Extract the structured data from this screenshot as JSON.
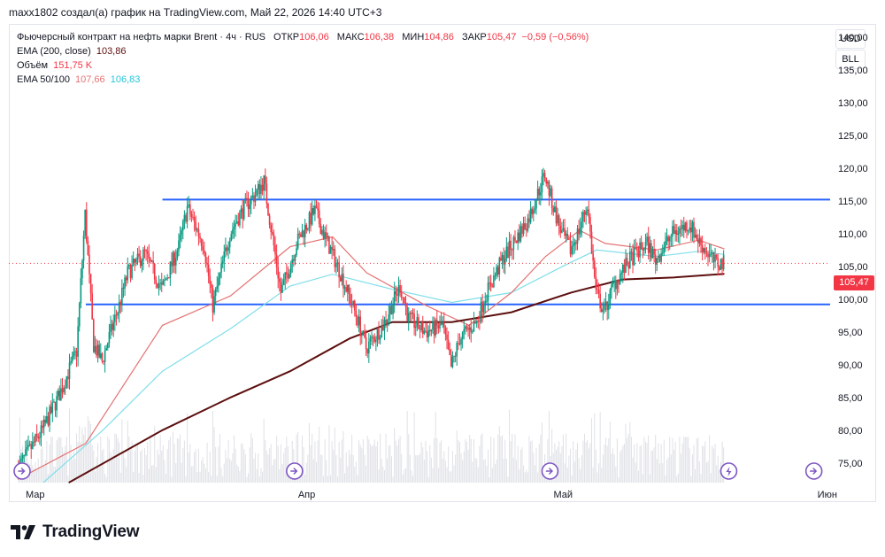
{
  "caption": "maxx1802 создал(а) график на TradingView.com, Май 22, 2026 14:40 UTC+3",
  "legend": {
    "instrument": "Фьючерсный контракт на нефть марки Brent · 4ч · RUS",
    "open_label": "ОТКР",
    "open": "106,06",
    "high_label": "МАКС",
    "high": "106,38",
    "low_label": "МИН",
    "low": "104,86",
    "close_label": "ЗАКР",
    "close": "105,47",
    "change": "−0,59 (−0,56%)",
    "ema200_label": "EMA (200, close)",
    "ema200_value": "103,86",
    "volume_label": "Объём",
    "volume_value": "151,75 K",
    "ema_pair_label": "EMA 50/100",
    "ema50_value": "107,66",
    "ema100_value": "106,83"
  },
  "axis_buttons": {
    "currency": "USD",
    "unit": "BLL"
  },
  "last_price_tag": "105,47",
  "brand": "TradingView",
  "colors": {
    "up": "#089981",
    "down": "#f23645",
    "level": "#2962ff",
    "ema200": "#5d0f0f",
    "ema50": "#e57373",
    "ema100": "#80deea",
    "volume": "#d1d4dc"
  },
  "icons": [
    "event-icon",
    "lightning-icon",
    "tradingview-logo-icon"
  ],
  "chart_data": {
    "type": "candlestick",
    "title": "Фьючерсный контракт на нефть марки Brent · 4ч · RUS",
    "y_range": [
      72,
      142
    ],
    "y_ticks": [
      "140,00",
      "135,00",
      "130,00",
      "125,00",
      "120,00",
      "115,00",
      "110,00",
      "105,00",
      "100,00",
      "95,00",
      "90,00",
      "85,00",
      "80,00",
      "75,00"
    ],
    "x_labels": [
      "Мар",
      "Апр",
      "Май",
      "Июн"
    ],
    "horizontal_levels": [
      {
        "price": 115.2,
        "from_date": "2026-03-17",
        "to_date": "end"
      },
      {
        "price": 99.2,
        "from_date": "2026-03-08",
        "to_date": "end"
      }
    ],
    "date_range": [
      "2026-02-28",
      "2026-05-22"
    ],
    "price_path": [
      [
        "2026-02-28",
        74.0
      ],
      [
        "2026-03-03",
        80.0
      ],
      [
        "2026-03-05",
        85.5
      ],
      [
        "2026-03-07",
        92.0
      ],
      [
        "2026-03-08",
        113.0
      ],
      [
        "2026-03-09",
        93.0
      ],
      [
        "2026-03-10",
        90.5
      ],
      [
        "2026-03-11",
        95.0
      ],
      [
        "2026-03-12",
        99.0
      ],
      [
        "2026-03-13",
        104.0
      ],
      [
        "2026-03-15",
        107.0
      ],
      [
        "2026-03-17",
        101.5
      ],
      [
        "2026-03-19",
        108.0
      ],
      [
        "2026-03-20",
        114.0
      ],
      [
        "2026-03-22",
        108.0
      ],
      [
        "2026-03-23",
        99.0
      ],
      [
        "2026-03-25",
        110.0
      ],
      [
        "2026-03-26",
        112.5
      ],
      [
        "2026-03-27",
        114.5
      ],
      [
        "2026-03-28",
        116.0
      ],
      [
        "2026-03-29",
        118.0
      ],
      [
        "2026-03-31",
        101.0
      ],
      [
        "2026-04-02",
        109.0
      ],
      [
        "2026-04-04",
        113.5
      ],
      [
        "2026-04-05",
        110.0
      ],
      [
        "2026-04-07",
        104.0
      ],
      [
        "2026-04-09",
        97.0
      ],
      [
        "2026-04-10",
        92.5
      ],
      [
        "2026-04-12",
        96.0
      ],
      [
        "2026-04-14",
        102.0
      ],
      [
        "2026-04-15",
        97.0
      ],
      [
        "2026-04-17",
        95.0
      ],
      [
        "2026-04-19",
        96.0
      ],
      [
        "2026-04-20",
        89.5
      ],
      [
        "2026-04-21",
        94.0
      ],
      [
        "2026-04-23",
        96.5
      ],
      [
        "2026-04-24",
        100.5
      ],
      [
        "2026-04-26",
        106.0
      ],
      [
        "2026-04-28",
        110.0
      ],
      [
        "2026-04-29",
        112.0
      ],
      [
        "2026-05-01",
        119.0
      ],
      [
        "2026-05-02",
        114.0
      ],
      [
        "2026-05-03",
        110.0
      ],
      [
        "2026-05-04",
        107.5
      ],
      [
        "2026-05-05",
        110.5
      ],
      [
        "2026-05-06",
        114.5
      ],
      [
        "2026-05-07",
        101.0
      ],
      [
        "2026-05-08",
        98.0
      ],
      [
        "2026-05-09",
        102.0
      ],
      [
        "2026-05-11",
        106.0
      ],
      [
        "2026-05-13",
        108.5
      ],
      [
        "2026-05-14",
        106.0
      ],
      [
        "2026-05-16",
        110.0
      ],
      [
        "2026-05-18",
        111.5
      ],
      [
        "2026-05-19",
        109.0
      ],
      [
        "2026-05-21",
        105.5
      ],
      [
        "2026-05-22",
        105.47
      ]
    ],
    "last": {
      "open": 106.06,
      "high": 106.38,
      "low": 104.86,
      "close": 105.47
    },
    "ema200_path": [
      [
        "2026-03-06",
        72.0
      ],
      [
        "2026-03-17",
        80.0
      ],
      [
        "2026-03-25",
        85.0
      ],
      [
        "2026-04-01",
        89.0
      ],
      [
        "2026-04-08",
        94.0
      ],
      [
        "2026-04-13",
        96.5
      ],
      [
        "2026-04-20",
        96.5
      ],
      [
        "2026-04-27",
        98.0
      ],
      [
        "2026-05-04",
        101.0
      ],
      [
        "2026-05-10",
        103.0
      ],
      [
        "2026-05-16",
        103.3
      ],
      [
        "2026-05-22",
        103.86
      ]
    ],
    "ema50_path": [
      [
        "2026-02-28",
        72.5
      ],
      [
        "2026-03-08",
        78.0
      ],
      [
        "2026-03-17",
        96.0
      ],
      [
        "2026-03-25",
        100.5
      ],
      [
        "2026-04-01",
        108.0
      ],
      [
        "2026-04-06",
        109.5
      ],
      [
        "2026-04-10",
        104.0
      ],
      [
        "2026-04-17",
        99.0
      ],
      [
        "2026-04-22",
        96.0
      ],
      [
        "2026-04-27",
        101.0
      ],
      [
        "2026-05-01",
        106.5
      ],
      [
        "2026-05-05",
        110.5
      ],
      [
        "2026-05-08",
        108.5
      ],
      [
        "2026-05-14",
        107.5
      ],
      [
        "2026-05-19",
        109.0
      ],
      [
        "2026-05-22",
        107.66
      ]
    ],
    "ema100_path": [
      [
        "2026-03-03",
        72.0
      ],
      [
        "2026-03-10",
        80.0
      ],
      [
        "2026-03-17",
        89.0
      ],
      [
        "2026-03-25",
        95.5
      ],
      [
        "2026-04-01",
        102.0
      ],
      [
        "2026-04-06",
        103.8
      ],
      [
        "2026-04-13",
        101.5
      ],
      [
        "2026-04-20",
        99.5
      ],
      [
        "2026-04-27",
        101.0
      ],
      [
        "2026-05-03",
        105.0
      ],
      [
        "2026-05-07",
        107.5
      ],
      [
        "2026-05-14",
        106.5
      ],
      [
        "2026-05-19",
        107.3
      ],
      [
        "2026-05-22",
        106.83
      ]
    ],
    "event_marker_dates": [
      "2026-02-28",
      "2026-04-01",
      "2026-05-01",
      "2026-06-01"
    ],
    "lightning_marker_date": "2026-05-22"
  }
}
